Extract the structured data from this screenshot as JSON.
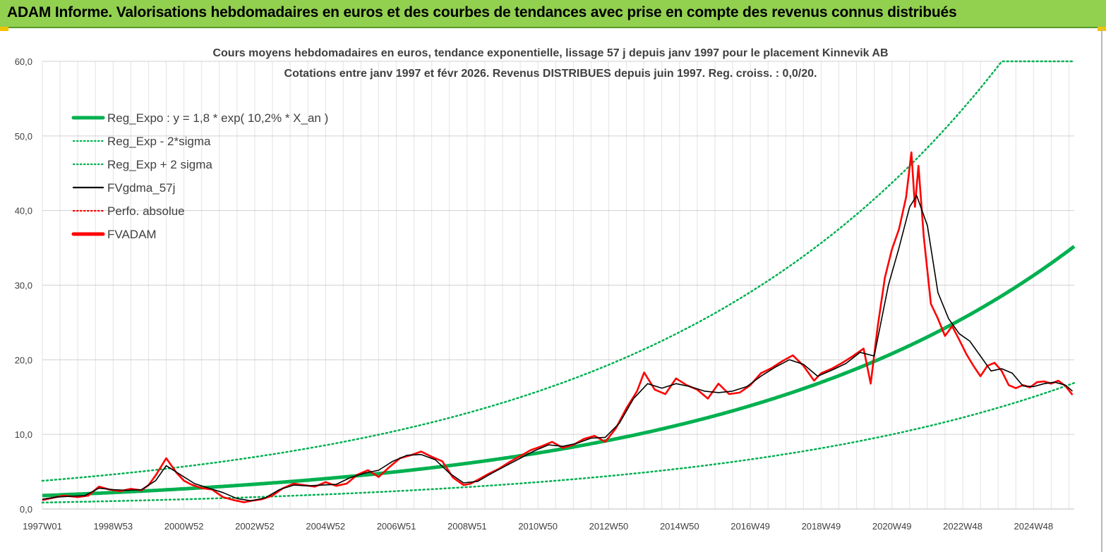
{
  "header": {
    "title": "ADAM Informe. Valorisations hebdomadaires en euros et des courbes de tendances avec prise en compte des revenus connus distribués"
  },
  "chart_data": {
    "type": "line",
    "title_line1": "Cours moyens hebdomadaires en euros, tendance exponentielle, lissage 57 j depuis janv 1997 pour le placement Kinnevik AB",
    "title_line2": "Cotations entre janv 1997 et févr 2026. Revenus DISTRIBUES depuis juin 1997. Reg. croiss. : 0,0/20.",
    "xlabel": "",
    "ylabel": "",
    "xlim": [
      1997.0,
      2026.15
    ],
    "ylim": [
      0,
      60
    ],
    "y_ticks": [
      "0,0",
      "10,0",
      "20,0",
      "30,0",
      "40,0",
      "50,0",
      "60,0"
    ],
    "x_tick_labels": [
      "1997W01",
      "1998W53",
      "2000W52",
      "2002W52",
      "2004W52",
      "2006W51",
      "2008W51",
      "2010W50",
      "2012W50",
      "2014W50",
      "2016W49",
      "2018W49",
      "2020W49",
      "2022W48",
      "2024W48"
    ],
    "x_tick_years": [
      1997.0,
      1999.0,
      2001.0,
      2003.0,
      2005.0,
      2007.0,
      2009.0,
      2011.0,
      2013.0,
      2015.0,
      2017.0,
      2019.0,
      2021.0,
      2023.0,
      2025.0
    ],
    "grid": true,
    "legend_position": "top-left",
    "legend": [
      {
        "label": "Reg_Expo : y = 1,8 * exp( 10,2% *  X_an )",
        "color": "#00b050",
        "style": "solid-thick"
      },
      {
        "label": "Reg_Exp - 2*sigma",
        "color": "#00b050",
        "style": "dotted"
      },
      {
        "label": "Reg_Exp + 2 sigma",
        "color": "#00b050",
        "style": "dotted"
      },
      {
        "label": "FVgdma_57j",
        "color": "#000000",
        "style": "solid"
      },
      {
        "label": "Perfo. absolue",
        "color": "#ff0000",
        "style": "dotted"
      },
      {
        "label": "FVADAM",
        "color": "#ff0000",
        "style": "solid-thick"
      }
    ],
    "regression": {
      "a": 1.8,
      "b": 0.102,
      "x0": 1997.0,
      "lower_factor": 0.48,
      "upper_factor": 2.1,
      "cap": 60
    },
    "series": [
      {
        "name": "FVADAM",
        "color": "#ff0000",
        "x": [
          1997.0,
          1997.3,
          1997.6,
          1998.0,
          1998.3,
          1998.6,
          1998.9,
          1999.2,
          1999.5,
          1999.8,
          2000.0,
          2000.2,
          2000.5,
          2000.8,
          2001.0,
          2001.2,
          2001.5,
          2001.8,
          2002.1,
          2002.4,
          2002.7,
          2002.9,
          2003.2,
          2003.5,
          2003.8,
          2004.1,
          2004.4,
          2004.7,
          2005.0,
          2005.3,
          2005.6,
          2005.9,
          2006.2,
          2006.5,
          2006.8,
          2007.1,
          2007.4,
          2007.7,
          2008.0,
          2008.3,
          2008.6,
          2008.9,
          2009.1,
          2009.3,
          2009.6,
          2009.9,
          2010.2,
          2010.5,
          2010.8,
          2011.1,
          2011.4,
          2011.7,
          2012.0,
          2012.3,
          2012.6,
          2012.9,
          2013.2,
          2013.5,
          2013.8,
          2014.0,
          2014.3,
          2014.6,
          2014.9,
          2015.2,
          2015.5,
          2015.8,
          2016.1,
          2016.4,
          2016.7,
          2017.0,
          2017.3,
          2017.6,
          2017.9,
          2018.2,
          2018.5,
          2018.8,
          2019.0,
          2019.3,
          2019.6,
          2019.9,
          2020.2,
          2020.4,
          2020.6,
          2020.8,
          2021.0,
          2021.2,
          2021.4,
          2021.55,
          2021.65,
          2021.75,
          2021.9,
          2022.1,
          2022.3,
          2022.5,
          2022.7,
          2022.9,
          2023.1,
          2023.3,
          2023.5,
          2023.7,
          2023.9,
          2024.1,
          2024.3,
          2024.5,
          2024.7,
          2024.9,
          2025.1,
          2025.3,
          2025.5,
          2025.7,
          2025.9,
          2026.1
        ],
        "values": [
          1.2,
          1.5,
          1.8,
          1.6,
          1.8,
          3.0,
          2.6,
          2.4,
          2.7,
          2.5,
          3.2,
          4.5,
          6.8,
          4.8,
          3.8,
          3.3,
          2.8,
          2.6,
          1.6,
          1.2,
          0.9,
          1.1,
          1.3,
          1.8,
          2.8,
          3.4,
          3.2,
          3.0,
          3.6,
          3.1,
          3.4,
          4.6,
          5.2,
          4.3,
          5.6,
          6.8,
          7.2,
          7.7,
          7.0,
          6.4,
          4.2,
          3.2,
          3.4,
          3.9,
          4.7,
          5.4,
          6.3,
          7.1,
          7.9,
          8.4,
          9.0,
          8.2,
          8.6,
          9.4,
          9.8,
          9.0,
          10.8,
          13.5,
          15.8,
          18.3,
          16.0,
          15.4,
          17.5,
          16.6,
          16.0,
          14.8,
          16.8,
          15.4,
          15.6,
          16.6,
          18.2,
          18.9,
          19.8,
          20.6,
          19.2,
          17.2,
          18.2,
          18.8,
          19.6,
          20.5,
          21.5,
          16.8,
          24.5,
          31.0,
          34.8,
          37.5,
          41.8,
          47.8,
          40.5,
          46.0,
          36.5,
          27.5,
          25.5,
          23.2,
          24.5,
          22.7,
          20.8,
          19.2,
          17.8,
          19.2,
          19.6,
          18.5,
          16.6,
          16.2,
          16.6,
          16.3,
          17.0,
          17.1,
          16.8,
          17.2,
          16.5,
          15.3
        ]
      },
      {
        "name": "FVgdma_57j",
        "color": "#000000",
        "x": [
          1997.0,
          1997.4,
          1997.8,
          1998.2,
          1998.6,
          1999.0,
          1999.4,
          1999.8,
          2000.2,
          2000.5,
          2000.9,
          2001.3,
          2001.7,
          2002.1,
          2002.5,
          2002.9,
          2003.3,
          2003.7,
          2004.1,
          2004.5,
          2004.9,
          2005.3,
          2005.7,
          2006.1,
          2006.5,
          2006.9,
          2007.3,
          2007.7,
          2008.1,
          2008.5,
          2008.9,
          2009.3,
          2009.7,
          2010.1,
          2010.5,
          2010.9,
          2011.3,
          2011.7,
          2012.1,
          2012.5,
          2012.9,
          2013.3,
          2013.7,
          2014.1,
          2014.5,
          2014.9,
          2015.3,
          2015.7,
          2016.1,
          2016.5,
          2016.9,
          2017.3,
          2017.7,
          2018.1,
          2018.5,
          2018.9,
          2019.3,
          2019.7,
          2020.1,
          2020.5,
          2020.9,
          2021.2,
          2021.5,
          2021.7,
          2022.0,
          2022.3,
          2022.6,
          2022.9,
          2023.2,
          2023.5,
          2023.8,
          2024.1,
          2024.4,
          2024.7,
          2025.0,
          2025.3,
          2025.6,
          2025.9,
          2026.1
        ],
        "values": [
          1.3,
          1.6,
          1.7,
          1.8,
          2.8,
          2.6,
          2.5,
          2.6,
          3.8,
          5.8,
          4.6,
          3.4,
          2.8,
          2.2,
          1.4,
          1.1,
          1.5,
          2.6,
          3.2,
          3.1,
          3.2,
          3.3,
          4.2,
          4.8,
          5.2,
          6.4,
          7.2,
          7.3,
          6.6,
          4.8,
          3.5,
          3.7,
          4.8,
          5.8,
          6.8,
          7.8,
          8.6,
          8.4,
          8.8,
          9.5,
          9.6,
          11.5,
          14.8,
          16.8,
          16.2,
          16.8,
          16.4,
          15.8,
          15.6,
          15.8,
          16.4,
          17.8,
          19.0,
          20.0,
          19.4,
          17.8,
          18.6,
          19.5,
          21.0,
          20.5,
          30.0,
          35.0,
          40.5,
          42.0,
          38.0,
          29.0,
          25.5,
          23.5,
          22.5,
          20.5,
          18.5,
          18.8,
          18.2,
          16.5,
          16.4,
          16.8,
          17.0,
          16.6,
          15.8
        ]
      }
    ]
  }
}
